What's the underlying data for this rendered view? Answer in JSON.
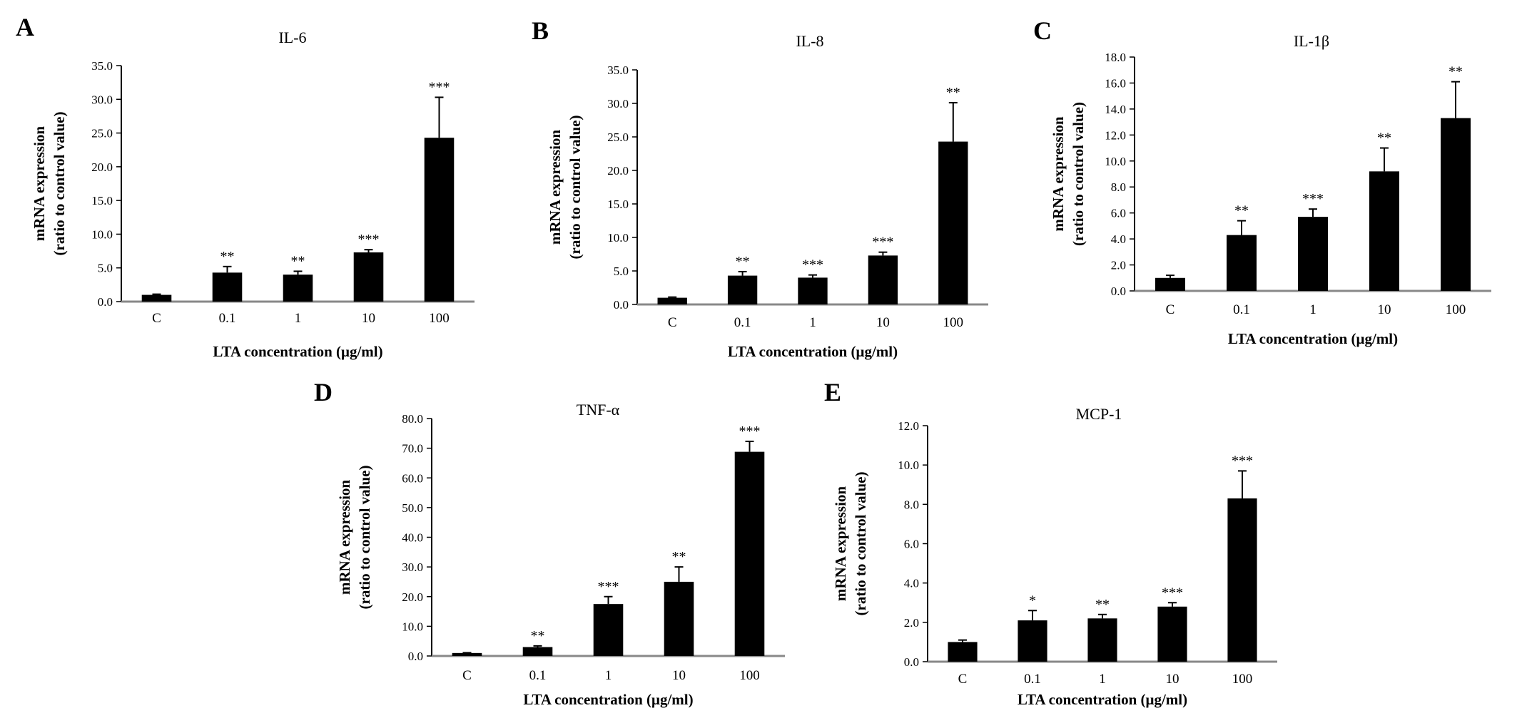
{
  "chart_data": [
    {
      "panel": "A",
      "type": "bar",
      "title": "IL-6",
      "xlabel": "LTA  concentration (μg/ml)",
      "ylabel": [
        "mRNA expression",
        "(ratio to control value)"
      ],
      "ylim": [
        0,
        35
      ],
      "yticks": [
        "0.0",
        "5.0",
        "10.0",
        "15.0",
        "20.0",
        "25.0",
        "30.0",
        "35.0"
      ],
      "categories": [
        "C",
        "0.1",
        "1",
        "10",
        "100"
      ],
      "values": [
        1.0,
        4.3,
        4.0,
        7.3,
        24.3
      ],
      "errors": [
        0.1,
        0.9,
        0.5,
        0.4,
        6.0
      ],
      "significance": [
        "",
        "**",
        "**",
        "***",
        "***"
      ],
      "bar_color": "#000000",
      "grid": false
    },
    {
      "panel": "B",
      "type": "bar",
      "title": "IL-8",
      "xlabel": "LTA  concentration (μg/ml)",
      "ylabel": [
        "mRNA expression",
        "(ratio to control value)"
      ],
      "ylim": [
        0,
        35
      ],
      "yticks": [
        "0.0",
        "5.0",
        "10.0",
        "15.0",
        "20.0",
        "25.0",
        "30.0",
        "35.0"
      ],
      "categories": [
        "C",
        "0.1",
        "1",
        "10",
        "100"
      ],
      "values": [
        1.0,
        4.3,
        4.0,
        7.3,
        24.3
      ],
      "errors": [
        0.1,
        0.6,
        0.4,
        0.5,
        5.8
      ],
      "significance": [
        "",
        "**",
        "***",
        "***",
        "**"
      ],
      "bar_color": "#000000",
      "grid": false
    },
    {
      "panel": "C",
      "type": "bar",
      "title": "IL-1β",
      "xlabel": "LTA  concentration (μg/ml)",
      "ylabel": [
        "mRNA expression",
        "(ratio to control value)"
      ],
      "ylim": [
        0,
        18
      ],
      "yticks": [
        "0.0",
        "2.0",
        "4.0",
        "6.0",
        "8.0",
        "10.0",
        "12.0",
        "14.0",
        "16.0",
        "18.0"
      ],
      "categories": [
        "C",
        "0.1",
        "1",
        "10",
        "100"
      ],
      "values": [
        1.0,
        4.3,
        5.7,
        9.2,
        13.3
      ],
      "errors": [
        0.2,
        1.1,
        0.6,
        1.8,
        2.8
      ],
      "significance": [
        "",
        "**",
        "***",
        "**",
        "**"
      ],
      "bar_color": "#000000",
      "grid": false
    },
    {
      "panel": "D",
      "type": "bar",
      "title": "TNF-α",
      "xlabel": "LTA  concentration (μg/ml)",
      "ylabel": [
        "mRNA expression",
        "(ratio to control value)"
      ],
      "ylim": [
        0,
        80
      ],
      "yticks": [
        "0.0",
        "10.0",
        "20.0",
        "30.0",
        "40.0",
        "50.0",
        "60.0",
        "70.0",
        "80.0"
      ],
      "categories": [
        "C",
        "0.1",
        "1",
        "10",
        "100"
      ],
      "values": [
        1.0,
        3.0,
        17.5,
        25.0,
        68.8
      ],
      "errors": [
        0.1,
        0.4,
        2.5,
        5.0,
        3.5
      ],
      "significance": [
        "",
        "**",
        "***",
        "**",
        "***"
      ],
      "bar_color": "#000000",
      "grid": false
    },
    {
      "panel": "E",
      "type": "bar",
      "title": "MCP-1",
      "xlabel": "LTA  concentration (μg/ml)",
      "ylabel": [
        "mRNA expression",
        "(ratio to control value)"
      ],
      "ylim": [
        0,
        12
      ],
      "yticks": [
        "0.0",
        "2.0",
        "4.0",
        "6.0",
        "8.0",
        "10.0",
        "12.0"
      ],
      "categories": [
        "C",
        "0.1",
        "1",
        "10",
        "100"
      ],
      "values": [
        1.0,
        2.1,
        2.2,
        2.8,
        8.3
      ],
      "errors": [
        0.1,
        0.5,
        0.2,
        0.2,
        1.4
      ],
      "significance": [
        "",
        "*",
        "**",
        "***",
        "***"
      ],
      "bar_color": "#000000",
      "grid": false
    }
  ]
}
